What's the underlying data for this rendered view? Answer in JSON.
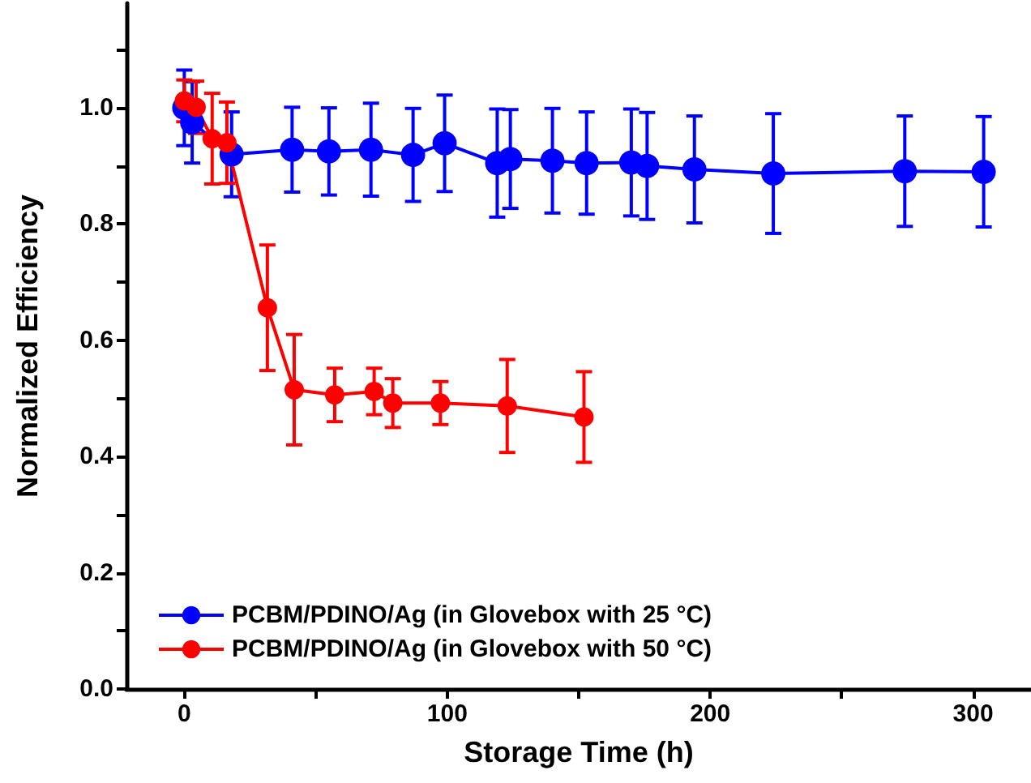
{
  "chart_data": {
    "type": "line",
    "xlabel": "Storage Time (h)",
    "ylabel": "Normalized Efficiency",
    "xlim": [
      -22,
      322
    ],
    "ylim": [
      0,
      1.18
    ],
    "xticks": [
      0,
      {
        "value": 50,
        "label": null
      },
      100,
      {
        "value": 150,
        "label": null
      },
      200,
      {
        "value": 250,
        "label": null
      },
      300
    ],
    "yticks": [
      {
        "value": 0,
        "label": "0.0"
      },
      {
        "value": 0.1,
        "label": null
      },
      {
        "value": 0.2,
        "label": "0.2"
      },
      {
        "value": 0.3,
        "label": null
      },
      {
        "value": 0.4,
        "label": "0.4"
      },
      {
        "value": 0.5,
        "label": null
      },
      {
        "value": 0.6,
        "label": "0.6"
      },
      {
        "value": 0.7,
        "label": null
      },
      {
        "value": 0.8,
        "label": "0.8"
      },
      {
        "value": 0.9,
        "label": null
      },
      {
        "value": 1.0,
        "label": "1.0"
      },
      {
        "value": 1.1,
        "label": null
      }
    ],
    "grid": false,
    "legend": "bottom left",
    "marker": "circle",
    "line_style": "solid",
    "series": [
      {
        "name": "PCBM/PDINO/Ag (in Glovebox with 25 °C)",
        "color": "#0000ff",
        "x": [
          0,
          3,
          18,
          41,
          55,
          71,
          87,
          99,
          119,
          124,
          140,
          153,
          170,
          176,
          194,
          224,
          274,
          304
        ],
        "values": [
          1.0,
          0.975,
          0.92,
          0.928,
          0.925,
          0.928,
          0.919,
          0.939,
          0.905,
          0.912,
          0.909,
          0.905,
          0.906,
          0.9,
          0.894,
          0.887,
          0.891,
          0.89
        ],
        "errors": [
          0.065,
          0.07,
          0.073,
          0.073,
          0.075,
          0.08,
          0.08,
          0.083,
          0.093,
          0.085,
          0.09,
          0.088,
          0.092,
          0.092,
          0.092,
          0.103,
          0.095,
          0.095
        ]
      },
      {
        "name": "PCBM/PDINO/Ag (in Glovebox with 50 °C)",
        "color": "#ff0000",
        "x": [
          0,
          4.5,
          10.6,
          16.2,
          31.6,
          41.8,
          57.2,
          72.2,
          79.3,
          97.4,
          122.8,
          152
        ],
        "values": [
          1.012,
          1.001,
          0.947,
          0.94,
          0.656,
          0.515,
          0.506,
          0.512,
          0.492,
          0.492,
          0.487,
          0.468
        ],
        "errors": [
          0.036,
          0.045,
          0.078,
          0.07,
          0.108,
          0.095,
          0.046,
          0.04,
          0.042,
          0.037,
          0.08,
          0.078
        ]
      }
    ]
  }
}
